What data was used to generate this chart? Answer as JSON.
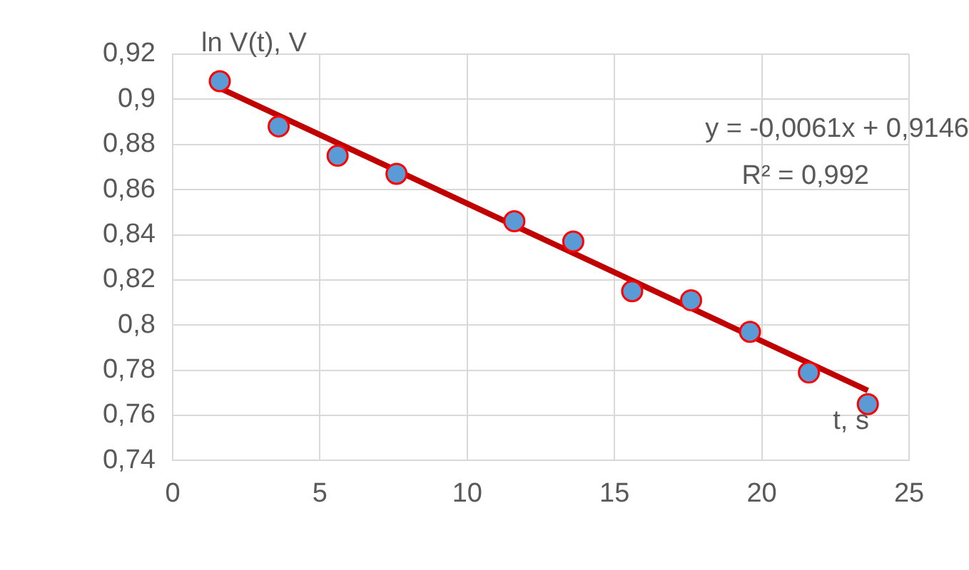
{
  "chart_data": {
    "type": "scatter",
    "xlabel": "t, s",
    "ylabel": "ln V(t), V",
    "annotations": [
      "y = -0,0061x + 0,9146",
      "R² = 0,992"
    ],
    "series": [
      {
        "marker": "circle",
        "color": "#5b9bd5",
        "x": [
          1.6,
          3.6,
          5.6,
          7.6,
          11.6,
          13.6,
          15.6,
          17.6,
          19.6,
          21.6,
          23.6
        ],
        "values": [
          0.908,
          0.888,
          0.875,
          0.867,
          0.846,
          0.837,
          0.815,
          0.811,
          0.797,
          0.779,
          0.765
        ]
      },
      {
        "type": "line",
        "marker": "none",
        "color": "#c00000",
        "x": [
          1.6,
          23.6
        ],
        "values": [
          0.905,
          0.771
        ]
      }
    ],
    "xlim": [
      0,
      25
    ],
    "xticks": [
      0,
      5,
      10,
      15,
      20,
      25
    ],
    "ylim": [
      0.74,
      0.92
    ],
    "yticks": [
      {
        "value": 0.74,
        "label": "0,74"
      },
      {
        "value": 0.76,
        "label": "0,76"
      },
      {
        "value": 0.78,
        "label": "0,78"
      },
      {
        "value": 0.8,
        "label": "0,8"
      },
      {
        "value": 0.82,
        "label": "0,82"
      },
      {
        "value": 0.84,
        "label": "0,84"
      },
      {
        "value": 0.86,
        "label": "0,86"
      },
      {
        "value": 0.88,
        "label": "0,88"
      },
      {
        "value": 0.9,
        "label": "0,9"
      },
      {
        "value": 0.92,
        "label": "0,92"
      }
    ],
    "grid": true,
    "legend": false,
    "line_style": "solid"
  }
}
